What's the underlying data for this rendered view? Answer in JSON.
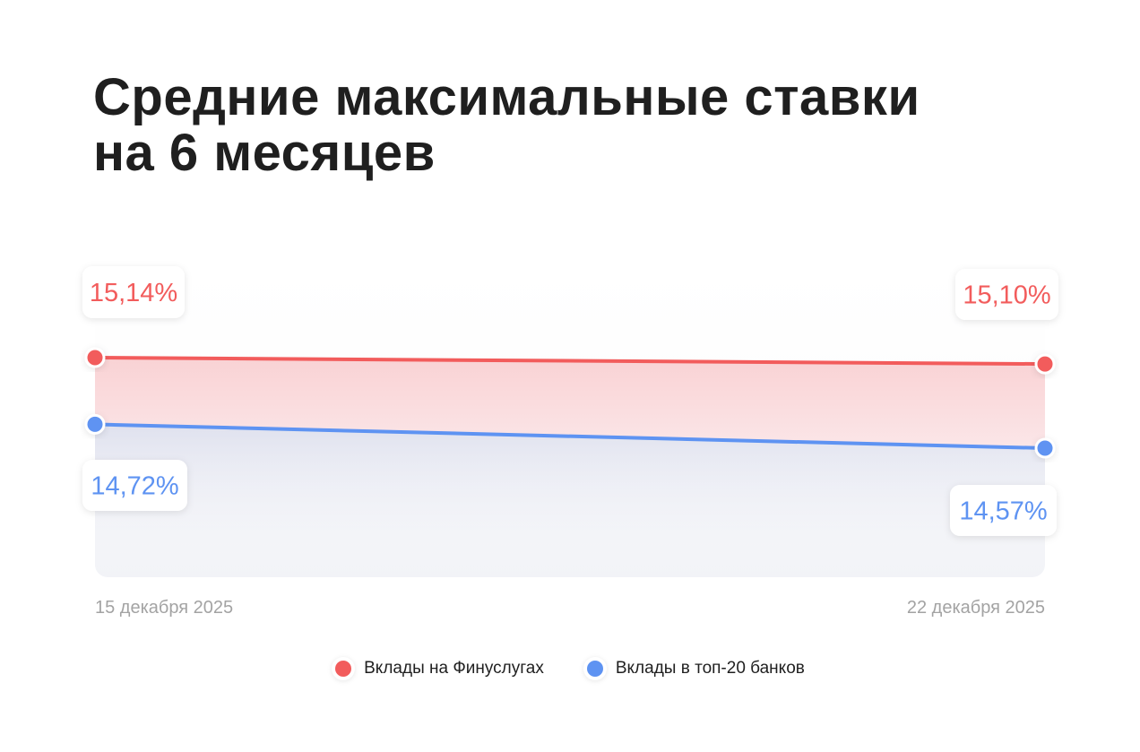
{
  "title_lines": [
    "Средние максимальные ставки",
    "на 6 месяцев"
  ],
  "colors": {
    "series_a": "#f25c5c",
    "series_b": "#5e93f2",
    "axis_text": "#a3a3a3"
  },
  "chart_data": {
    "type": "line",
    "x": [
      "15 декабря 2025",
      "22 декабря 2025"
    ],
    "series": [
      {
        "name": "Вклады на Финуслугах",
        "values": [
          15.14,
          15.1
        ],
        "labels": [
          "15,14%",
          "15,10%"
        ]
      },
      {
        "name": "Вклады в топ-20 банков",
        "values": [
          14.72,
          14.57
        ],
        "labels": [
          "14,72%",
          "14,57%"
        ]
      }
    ],
    "title": "Средние максимальные ставки на 6 месяцев",
    "grid": false,
    "legend_position": "bottom"
  }
}
